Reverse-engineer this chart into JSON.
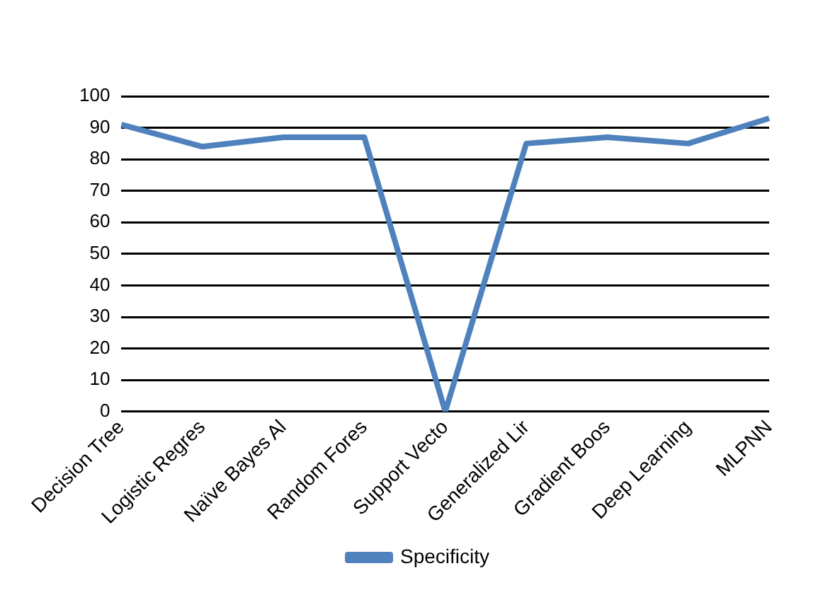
{
  "chart_data": {
    "type": "line",
    "categories": [
      "Decision Tree",
      "Logistic Regres",
      "Naïve Bayes Al",
      "Random Fores",
      "Support Vecto",
      "Generalized Lir",
      "Gradient Boos",
      "Deep Learning",
      "MLPNN"
    ],
    "series": [
      {
        "name": "Specificity",
        "color": "#4f81bd",
        "values": [
          91,
          84,
          87,
          87,
          0,
          85,
          87,
          85,
          93
        ]
      }
    ],
    "ylim": [
      0,
      100
    ],
    "yticks": [
      0,
      10,
      20,
      30,
      40,
      50,
      60,
      70,
      80,
      90,
      100
    ],
    "grid": "y",
    "legend": "bottom",
    "marker": "none"
  }
}
